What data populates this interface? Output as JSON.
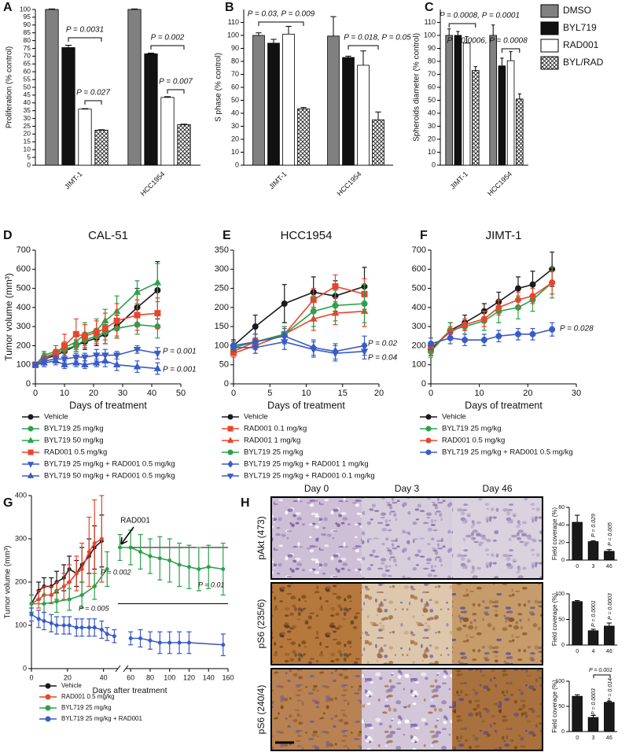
{
  "chart_data": [
    {
      "label": "A",
      "type": "bar",
      "ylabel": "Proliferation (% control)",
      "categories": [
        "JIMT-1",
        "HCC1954"
      ],
      "series": [
        {
          "color": "#808080",
          "values": [
            100,
            100
          ],
          "errors": [
            0.3,
            0.3
          ]
        },
        {
          "color": "#111111",
          "values": [
            75.5,
            71.5
          ],
          "errors": [
            1.5,
            0.5
          ]
        },
        {
          "color": "#ffffff",
          "values": [
            36,
            43.5
          ],
          "errors": [
            0.3,
            0.5
          ]
        },
        {
          "color": "#ffffff",
          "hatch": true,
          "values": [
            22.5,
            26
          ],
          "errors": [
            0.3,
            0.3
          ]
        }
      ],
      "ylim": [
        0,
        100
      ],
      "yticks": [
        0,
        5,
        10,
        15,
        20,
        25,
        30,
        35,
        40,
        45,
        50,
        55,
        60,
        65,
        70,
        75,
        80,
        85,
        90,
        95,
        100
      ],
      "annotations": [
        "P = 0.0031",
        "P = 0.027",
        "P = 0.002",
        "P = 0.007"
      ]
    },
    {
      "label": "B",
      "type": "bar",
      "ylabel": "S phase (% control)",
      "categories": [
        "JIMT-1",
        "HCC1954"
      ],
      "series": [
        {
          "color": "#808080",
          "values": [
            100,
            99.5
          ],
          "errors": [
            2,
            15
          ]
        },
        {
          "color": "#111111",
          "values": [
            94,
            83
          ],
          "errors": [
            3,
            1
          ]
        },
        {
          "color": "#ffffff",
          "values": [
            101,
            77
          ],
          "errors": [
            6,
            11
          ]
        },
        {
          "color": "#ffffff",
          "hatch": true,
          "values": [
            43.5,
            35
          ],
          "errors": [
            1,
            6
          ]
        }
      ],
      "ylim": [
        0,
        120
      ],
      "yticks": [
        0,
        10,
        20,
        30,
        40,
        50,
        60,
        70,
        80,
        90,
        100,
        110
      ],
      "annotations": [
        "P = 0.03, P = 0.009",
        "P = 0.018, P = 0.05"
      ]
    },
    {
      "label": "C",
      "type": "bar",
      "ylabel": "Spheroids diameter (% control)",
      "categories": [
        "JIMT-1",
        "HCC1954"
      ],
      "series": [
        {
          "name": "DMSO",
          "color": "#808080",
          "values": [
            100,
            100
          ],
          "errors": [
            5,
            8
          ]
        },
        {
          "name": "BYL719",
          "color": "#111111",
          "values": [
            100,
            76.5
          ],
          "errors": [
            3,
            6
          ]
        },
        {
          "name": "RAD001",
          "color": "#ffffff",
          "values": [
            94,
            80.5
          ],
          "errors": [
            5,
            7
          ]
        },
        {
          "name": "BYL/RAD",
          "color": "#ffffff",
          "hatch": true,
          "values": [
            73,
            51
          ],
          "errors": [
            3,
            4
          ]
        }
      ],
      "ylim": [
        0,
        120
      ],
      "yticks": [
        0,
        10,
        20,
        30,
        40,
        50,
        60,
        70,
        80,
        90,
        100,
        110
      ],
      "legend": "right",
      "annotations": [
        "P = 0.0008, P = 0.0001",
        "P = 0.0006, P = 0.0008"
      ]
    },
    {
      "label": "D",
      "type": "line",
      "title": "CAL-51",
      "xlabel": "Days of treatment",
      "ylabel": "Tumor volume (mm³)",
      "x": [
        0,
        3,
        7,
        10,
        14,
        17,
        21,
        24,
        28,
        35,
        42
      ],
      "series": [
        {
          "name": "Vehicle",
          "color": "#1a1a1a",
          "marker": "circle",
          "values": [
            100,
            130,
            150,
            170,
            200,
            220,
            240,
            260,
            300,
            400,
            490
          ],
          "errors": [
            10,
            15,
            20,
            20,
            30,
            40,
            40,
            50,
            60,
            100,
            150
          ]
        },
        {
          "name": "BYL719 25 mg/kg",
          "color": "#2aa24a",
          "marker": "circle",
          "values": [
            100,
            140,
            160,
            180,
            200,
            230,
            250,
            270,
            290,
            310,
            300
          ],
          "errors": [
            10,
            20,
            20,
            30,
            30,
            40,
            40,
            40,
            40,
            50,
            60
          ]
        },
        {
          "name": "BYL719 50 mg/kg",
          "color": "#2aa24a",
          "marker": "triangle",
          "values": [
            100,
            150,
            170,
            190,
            220,
            260,
            280,
            330,
            380,
            480,
            530
          ],
          "errors": [
            10,
            20,
            30,
            30,
            40,
            60,
            60,
            60,
            80,
            60,
            100
          ]
        },
        {
          "name": "RAD001 0.5 mg/kg",
          "color": "#e8452c",
          "marker": "square",
          "values": [
            100,
            130,
            160,
            200,
            260,
            250,
            270,
            290,
            330,
            360,
            370
          ],
          "errors": [
            15,
            20,
            40,
            60,
            80,
            60,
            60,
            80,
            90,
            80,
            80
          ]
        },
        {
          "name": "BYL719 25 mg/kg + RAD001 0.5 mg/kg",
          "color": "#3a5bc7",
          "marker": "triangle-down",
          "values": [
            100,
            120,
            130,
            130,
            140,
            140,
            150,
            150,
            150,
            180,
            160
          ],
          "errors": [
            10,
            20,
            20,
            20,
            20,
            20,
            30,
            30,
            20,
            20,
            30
          ]
        },
        {
          "name": "BYL719 50 mg/kg + RAD001 0.5 mg/kg",
          "color": "#3a5bc7",
          "marker": "triangle",
          "values": [
            100,
            110,
            120,
            100,
            110,
            100,
            110,
            120,
            100,
            90,
            80
          ],
          "errors": [
            10,
            20,
            20,
            20,
            20,
            20,
            20,
            30,
            30,
            30,
            30
          ]
        }
      ],
      "xlim": [
        0,
        50
      ],
      "xticks": [
        0,
        10,
        20,
        30,
        40,
        50
      ],
      "ylim": [
        0,
        700
      ],
      "yticks": [
        0,
        100,
        200,
        300,
        400,
        500,
        600,
        700
      ],
      "legend": "below",
      "annotations": [
        "P = 0.001",
        "P = 0.001"
      ]
    },
    {
      "label": "E",
      "type": "line",
      "title": "HCC1954",
      "xlabel": "Days of treatment",
      "x": [
        0,
        3,
        7,
        11,
        14,
        18
      ],
      "series": [
        {
          "name": "Vehicle",
          "color": "#1a1a1a",
          "marker": "circle",
          "values": [
            100,
            150,
            210,
            240,
            230,
            255
          ],
          "errors": [
            15,
            30,
            50,
            40,
            40,
            50
          ]
        },
        {
          "name": "RAD001 0.1 mg/kg",
          "color": "#e8452c",
          "marker": "square",
          "values": [
            85,
            110,
            130,
            220,
            255,
            235
          ],
          "errors": [
            10,
            20,
            20,
            30,
            30,
            40
          ]
        },
        {
          "name": "RAD001 1 mg/kg",
          "color": "#e8452c",
          "marker": "triangle",
          "values": [
            80,
            100,
            130,
            170,
            185,
            190
          ],
          "errors": [
            10,
            20,
            20,
            30,
            30,
            40
          ]
        },
        {
          "name": "BYL719  25 mg/kg",
          "color": "#2aa24a",
          "marker": "circle",
          "values": [
            95,
            110,
            130,
            190,
            205,
            210
          ],
          "errors": [
            10,
            20,
            20,
            40,
            40,
            50
          ]
        },
        {
          "name": "BYL719 25 mg/kg + RAD001  1 mg/kg",
          "color": "#3a5bc7",
          "marker": "diamond",
          "values": [
            100,
            110,
            125,
            95,
            85,
            100
          ],
          "errors": [
            10,
            20,
            20,
            20,
            20,
            25
          ]
        },
        {
          "name": "BYL719 25 mg/kg + RAD001 0.1 mg/kg",
          "color": "#3a5bc7",
          "marker": "triangle-down",
          "values": [
            95,
            95,
            110,
            90,
            80,
            85
          ],
          "errors": [
            10,
            15,
            20,
            20,
            20,
            20
          ]
        }
      ],
      "xlim": [
        0,
        20
      ],
      "xticks": [
        0,
        5,
        10,
        15,
        20
      ],
      "ylim": [
        0,
        350
      ],
      "yticks": [
        0,
        50,
        100,
        150,
        200,
        250,
        300,
        350
      ],
      "legend": "below",
      "annotations": [
        "P = 0.02",
        "P = 0.04"
      ]
    },
    {
      "label": "F",
      "type": "line",
      "title": "JIMT-1",
      "xlabel": "Days of treatment",
      "x": [
        0,
        4,
        7,
        11,
        14,
        18,
        21,
        25
      ],
      "series": [
        {
          "name": "Vehicle",
          "color": "#1a1a1a",
          "marker": "circle",
          "values": [
            180,
            280,
            320,
            380,
            430,
            500,
            520,
            600
          ],
          "errors": [
            30,
            40,
            40,
            40,
            50,
            60,
            70,
            90
          ]
        },
        {
          "name": "BYL719 25 mg/kg",
          "color": "#2aa24a",
          "marker": "circle",
          "values": [
            170,
            280,
            300,
            330,
            380,
            400,
            440,
            530
          ],
          "errors": [
            30,
            40,
            40,
            50,
            60,
            60,
            60,
            80
          ]
        },
        {
          "name": "RAD001 0.5 mg/kg",
          "color": "#e8452c",
          "marker": "circle",
          "values": [
            190,
            270,
            310,
            340,
            400,
            440,
            460,
            530
          ],
          "errors": [
            30,
            30,
            30,
            40,
            40,
            40,
            40,
            60
          ]
        },
        {
          "name": "BYL719 25 mg/kg + RAD001 0.5 mg/kg",
          "color": "#3a5bc7",
          "marker": "circle",
          "values": [
            210,
            240,
            230,
            230,
            250,
            260,
            260,
            285
          ],
          "errors": [
            30,
            30,
            30,
            30,
            30,
            30,
            30,
            35
          ]
        }
      ],
      "xlim": [
        0,
        30
      ],
      "xticks": [
        0,
        10,
        20,
        30
      ],
      "ylim": [
        0,
        700
      ],
      "yticks": [
        0,
        100,
        200,
        300,
        400,
        500,
        600,
        700
      ],
      "legend": "below",
      "annotations": [
        "P = 0.028"
      ]
    },
    {
      "label": "G",
      "type": "line",
      "xlabel": "Days after treatment",
      "ylabel": "Tumor volume (mm³)",
      "series": [
        {
          "name": "Vehicle",
          "color": "#1a1a1a",
          "marker": "circle",
          "x": [
            0,
            4,
            7,
            11,
            14,
            18,
            21,
            25,
            28,
            32,
            35,
            39
          ],
          "values": [
            150,
            180,
            190,
            190,
            200,
            210,
            230,
            220,
            240,
            260,
            280,
            295
          ],
          "errors": [
            20,
            20,
            20,
            20,
            25,
            30,
            30,
            30,
            40,
            40,
            50,
            60
          ]
        },
        {
          "name": "RAD001 0.5 mg/kg",
          "color": "#e8452c",
          "marker": "circle",
          "x": [
            0,
            4,
            7,
            11,
            14,
            18,
            21,
            25,
            28,
            32,
            35,
            39
          ],
          "values": [
            150,
            160,
            170,
            170,
            180,
            190,
            200,
            220,
            230,
            270,
            290,
            300
          ],
          "errors": [
            20,
            20,
            20,
            20,
            20,
            30,
            40,
            40,
            60,
            80,
            100,
            100
          ]
        },
        {
          "name": "BYL719 25 mg/kg",
          "color": "#2aa24a",
          "marker": "circle",
          "x": [
            0,
            7,
            14,
            21,
            28,
            35,
            42,
            49,
            60,
            70,
            80,
            90,
            100,
            110,
            120,
            130,
            140,
            155
          ],
          "values": [
            150,
            150,
            155,
            160,
            170,
            190,
            230,
            280,
            280,
            270,
            260,
            255,
            250,
            240,
            235,
            230,
            235,
            230
          ],
          "errors": [
            20,
            20,
            25,
            25,
            30,
            30,
            40,
            30,
            40,
            40,
            40,
            50,
            50,
            50,
            50,
            50,
            50,
            60
          ]
        },
        {
          "name": "BYL719 25 mg/kg + RAD001",
          "color": "#3a5bc7",
          "marker": "circle",
          "x": [
            0,
            4,
            7,
            11,
            14,
            18,
            21,
            25,
            28,
            32,
            35,
            39,
            42,
            46,
            60,
            70,
            80,
            90,
            100,
            110,
            120,
            155
          ],
          "values": [
            125,
            115,
            110,
            105,
            100,
            100,
            100,
            95,
            95,
            95,
            95,
            90,
            80,
            75,
            70,
            70,
            65,
            60,
            60,
            60,
            60,
            55
          ],
          "errors": [
            15,
            20,
            20,
            20,
            20,
            20,
            20,
            20,
            20,
            20,
            20,
            20,
            15,
            15,
            15,
            20,
            20,
            25,
            25,
            25,
            25,
            25
          ]
        }
      ],
      "xlim": [
        0,
        160
      ],
      "x_break": [
        48,
        55
      ],
      "xticks": [
        0,
        20,
        40,
        60,
        80,
        100,
        120,
        140,
        160
      ],
      "ylim": [
        0,
        400
      ],
      "yticks": [
        0,
        100,
        200,
        300,
        400
      ],
      "reference_y": [
        280,
        150
      ],
      "legend": "below",
      "annotations": [
        "RAD001",
        "P = 0.002",
        "P = 0.005",
        "P = 0.01"
      ]
    },
    {
      "type": "bar",
      "ylabel": "Field coverage (%)",
      "categories": [
        "0",
        "3",
        "46"
      ],
      "values": [
        43,
        21,
        10
      ],
      "errors": [
        8,
        1,
        2
      ],
      "color": "#1a1a1a",
      "ylim": [
        0,
        60
      ],
      "yticks": [
        0,
        20,
        40,
        60
      ],
      "annotations": [
        "P = 0.029",
        "P = 0.005"
      ]
    },
    {
      "type": "bar",
      "ylabel": "Field coverage (%)",
      "categories": [
        "0",
        "4",
        "46"
      ],
      "values": [
        85,
        28,
        37
      ],
      "errors": [
        2,
        3,
        6
      ],
      "color": "#1a1a1a",
      "ylim": [
        0,
        100
      ],
      "yticks": [
        0,
        50,
        100
      ],
      "annotations": [
        "P = 0.0001",
        "P = 0.0003"
      ]
    },
    {
      "type": "bar",
      "ylabel": "Field coverage (%)",
      "categories": [
        "0",
        "3",
        "46"
      ],
      "values": [
        70,
        28,
        58
      ],
      "errors": [
        3,
        4,
        2
      ],
      "color": "#1a1a1a",
      "ylim": [
        0,
        100
      ],
      "yticks": [
        0,
        50,
        100
      ],
      "annotations": [
        "P = 0.0003",
        "P = 0.014",
        "P = 0.001"
      ]
    }
  ],
  "images": {
    "label": "H",
    "columns": [
      "Day 0",
      "Day 3",
      "Day 46"
    ],
    "rows": [
      "pAkt (473)",
      "pS6 (235/6)",
      "pS6 (240/4)"
    ]
  }
}
